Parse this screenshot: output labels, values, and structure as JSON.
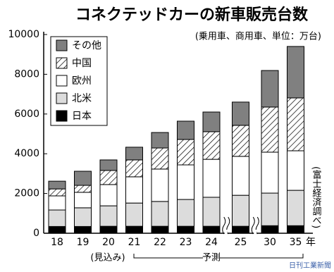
{
  "chart_data": {
    "type": "stacked-bar",
    "title": "コネクテッドカーの新車販売台数",
    "subtitle": "(乗用車、商用車、単位：万台)",
    "source": "(富士経済調べ)",
    "watermark": "日刊工業新聞",
    "x_unit": "年",
    "estimate_label": "(見込み)",
    "forecast_label": "予測",
    "categories": [
      "18",
      "19",
      "20",
      "21",
      "22",
      "23",
      "24",
      "25",
      "30",
      "35"
    ],
    "series": [
      {
        "name": "日本",
        "color": "#000000",
        "values": [
          340,
          340,
          350,
          350,
          350,
          350,
          350,
          350,
          380,
          380
        ]
      },
      {
        "name": "北米",
        "color": "#dcdcdc",
        "values": [
          830,
          940,
          1030,
          1170,
          1250,
          1350,
          1460,
          1560,
          1640,
          1780
        ]
      },
      {
        "name": "欧州",
        "color": "#ffffff",
        "values": [
          710,
          780,
          1070,
          1320,
          1630,
          1740,
          1910,
          1960,
          2060,
          1990
        ]
      },
      {
        "name": "中国",
        "color": "#ffffff",
        "pattern": "hatch",
        "values": [
          350,
          350,
          710,
          850,
          1060,
          1280,
          1390,
          1560,
          2270,
          2660
        ]
      },
      {
        "name": "その他",
        "color": "#808080",
        "values": [
          390,
          710,
          530,
          640,
          780,
          920,
          990,
          1170,
          1840,
          2590
        ]
      }
    ],
    "ylim": [
      0,
      10000
    ],
    "yticks": [
      0,
      2000,
      4000,
      6000,
      8000,
      10000
    ],
    "legend": "upper-left",
    "axis_breaks": [
      7,
      8
    ]
  }
}
